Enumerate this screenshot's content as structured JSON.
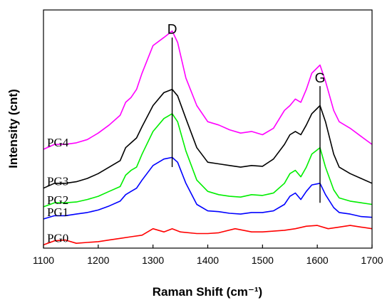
{
  "chart_data": {
    "type": "line",
    "xlabel": "Raman Shift (cm⁻¹)",
    "ylabel": "Intensity (cnt)",
    "xlim": [
      1100,
      1700
    ],
    "ylim": [
      0,
      14.7
    ],
    "xticks": [
      "1100",
      "1200",
      "1300",
      "1400",
      "1500",
      "1600",
      "1700"
    ],
    "x_tick_values": [
      1100,
      1200,
      1300,
      1400,
      1500,
      1600,
      1700
    ],
    "y_ticks_shown": false,
    "grid": false,
    "annotations": [
      {
        "label": "D",
        "x": 1335,
        "y_from": 5.0,
        "y_to": 13.0
      },
      {
        "label": "G",
        "x": 1605,
        "y_from": 2.8,
        "y_to": 10.0
      }
    ],
    "series": [
      {
        "name": "PG0",
        "color": "#ff0000",
        "x": [
          1100,
          1120,
          1140,
          1160,
          1180,
          1200,
          1220,
          1240,
          1260,
          1280,
          1300,
          1320,
          1335,
          1350,
          1380,
          1400,
          1420,
          1450,
          1480,
          1500,
          1520,
          1540,
          1560,
          1580,
          1600,
          1620,
          1640,
          1660,
          1680,
          1700
        ],
        "y": [
          0.2,
          0.45,
          0.5,
          0.3,
          0.35,
          0.4,
          0.5,
          0.6,
          0.7,
          0.8,
          1.2,
          1.0,
          1.2,
          1.0,
          0.9,
          0.9,
          0.95,
          1.2,
          1.0,
          1.0,
          1.05,
          1.1,
          1.2,
          1.35,
          1.4,
          1.2,
          1.3,
          1.4,
          1.3,
          1.2
        ]
      },
      {
        "name": "PG1",
        "color": "#0000ff",
        "x": [
          1100,
          1120,
          1140,
          1160,
          1180,
          1200,
          1220,
          1240,
          1250,
          1260,
          1270,
          1280,
          1300,
          1320,
          1335,
          1345,
          1360,
          1380,
          1400,
          1420,
          1440,
          1460,
          1480,
          1500,
          1520,
          1540,
          1550,
          1560,
          1570,
          1580,
          1590,
          1605,
          1615,
          1630,
          1640,
          1660,
          1680,
          1700
        ],
        "y": [
          1.8,
          2.0,
          2.0,
          2.1,
          2.2,
          2.35,
          2.6,
          2.9,
          3.3,
          3.5,
          3.7,
          4.2,
          5.1,
          5.5,
          5.6,
          5.3,
          4.0,
          2.7,
          2.3,
          2.25,
          2.15,
          2.1,
          2.2,
          2.2,
          2.3,
          2.7,
          3.2,
          3.4,
          3.0,
          3.5,
          3.9,
          4.0,
          3.3,
          2.5,
          2.2,
          2.1,
          1.95,
          1.9
        ]
      },
      {
        "name": "PG2",
        "color": "#00ee00",
        "x": [
          1100,
          1120,
          1140,
          1160,
          1180,
          1200,
          1220,
          1240,
          1250,
          1260,
          1270,
          1280,
          1300,
          1320,
          1335,
          1345,
          1360,
          1380,
          1400,
          1420,
          1440,
          1460,
          1480,
          1500,
          1520,
          1540,
          1550,
          1560,
          1570,
          1580,
          1590,
          1605,
          1615,
          1630,
          1640,
          1660,
          1680,
          1700
        ],
        "y": [
          2.55,
          2.8,
          2.8,
          2.85,
          3.0,
          3.2,
          3.5,
          3.8,
          4.5,
          4.8,
          5.0,
          5.8,
          7.2,
          8.0,
          8.3,
          7.8,
          6.0,
          4.2,
          3.5,
          3.3,
          3.2,
          3.15,
          3.3,
          3.25,
          3.4,
          4.0,
          4.6,
          4.8,
          4.4,
          5.0,
          5.8,
          6.2,
          5.0,
          3.6,
          3.1,
          2.9,
          2.8,
          2.7
        ]
      },
      {
        "name": "PG3",
        "color": "#000000",
        "x": [
          1100,
          1120,
          1140,
          1160,
          1180,
          1200,
          1220,
          1240,
          1250,
          1260,
          1270,
          1280,
          1300,
          1320,
          1335,
          1345,
          1360,
          1380,
          1400,
          1420,
          1440,
          1460,
          1480,
          1500,
          1520,
          1540,
          1550,
          1560,
          1570,
          1580,
          1590,
          1605,
          1615,
          1630,
          1640,
          1660,
          1680,
          1700
        ],
        "y": [
          3.7,
          4.0,
          4.0,
          4.1,
          4.3,
          4.6,
          5.0,
          5.4,
          6.2,
          6.5,
          6.8,
          7.5,
          8.8,
          9.6,
          9.8,
          9.4,
          8.0,
          6.2,
          5.3,
          5.2,
          5.1,
          5.0,
          5.1,
          5.05,
          5.5,
          6.4,
          7.0,
          7.2,
          7.0,
          7.6,
          8.3,
          8.8,
          7.8,
          5.8,
          5.0,
          4.6,
          4.3,
          4.0
        ]
      },
      {
        "name": "PG4",
        "color": "#ff00ff",
        "x": [
          1100,
          1120,
          1140,
          1160,
          1180,
          1200,
          1220,
          1240,
          1250,
          1260,
          1270,
          1280,
          1300,
          1320,
          1335,
          1345,
          1360,
          1380,
          1400,
          1420,
          1440,
          1460,
          1480,
          1500,
          1520,
          1540,
          1550,
          1560,
          1570,
          1580,
          1590,
          1605,
          1615,
          1630,
          1640,
          1660,
          1680,
          1700
        ],
        "y": [
          6.1,
          6.4,
          6.4,
          6.5,
          6.7,
          7.1,
          7.6,
          8.2,
          9.0,
          9.3,
          9.8,
          10.8,
          12.5,
          13.0,
          13.4,
          12.7,
          10.5,
          8.8,
          7.8,
          7.6,
          7.3,
          7.1,
          7.2,
          7.0,
          7.4,
          8.5,
          8.8,
          9.2,
          9.0,
          9.8,
          10.8,
          11.3,
          10.3,
          8.5,
          7.8,
          7.4,
          6.9,
          6.4
        ]
      }
    ]
  }
}
